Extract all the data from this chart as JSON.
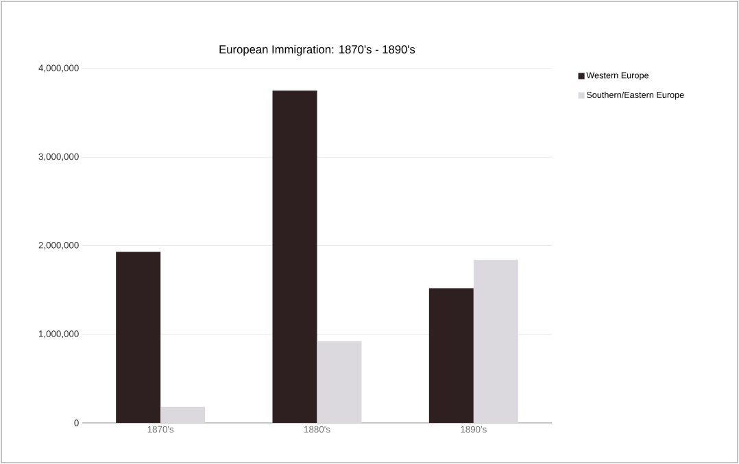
{
  "chart_data": {
    "type": "bar",
    "title": "European Immigration: 1870's - 1890's",
    "categories": [
      "1870's",
      "1880's",
      "1890's"
    ],
    "series": [
      {
        "name": "Western Europe",
        "color": "#2e1f21",
        "values": [
          1930000,
          3750000,
          1520000
        ]
      },
      {
        "name": "Southern/Eastern Europe",
        "color": "#dcd9de",
        "values": [
          180000,
          920000,
          1840000
        ]
      }
    ],
    "ylim": [
      0,
      4000000
    ],
    "yticks": [
      {
        "value": 0,
        "label": "0"
      },
      {
        "value": 1000000,
        "label": "1,000,000"
      },
      {
        "value": 2000000,
        "label": "2,000,000"
      },
      {
        "value": 3000000,
        "label": "3,000,000"
      },
      {
        "value": 4000000,
        "label": "4,000,000"
      }
    ],
    "grid": "y",
    "legend": "top right"
  }
}
